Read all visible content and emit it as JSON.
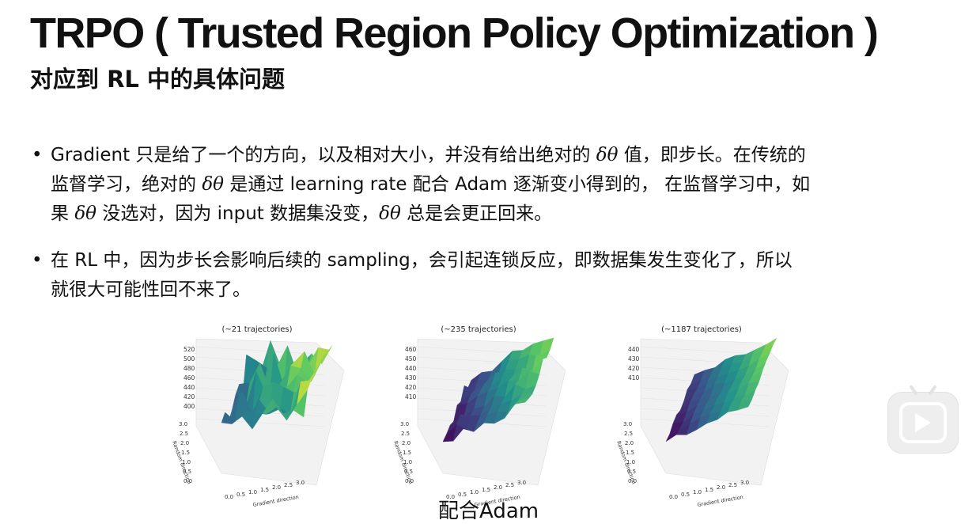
{
  "slide": {
    "title": "TRPO ( Trusted Region Policy Optimization )",
    "subtitle": "对应到 RL 中的具体问题",
    "bullet_symbol": "•",
    "delta_theta": "δθ",
    "bullet1": {
      "l1a": "Gradient 只是给了一个的方向，以及相对大小，并没有给出绝对的 ",
      "l1b": " 值，即步长。在传统的",
      "l2a": "监督学习，绝对的 ",
      "l2b": " 是通过 learning rate 配合 Adam 逐渐变小得到的，  在监督学习中，如",
      "l3a": "果 ",
      "l3b": " 没选对，因为 input 数据集没变，",
      "l3c": " 总是会更正回来。"
    },
    "bullet2": {
      "l1": "在 RL 中，因为步长会影响后续的 sampling，会引起连锁反应，即数据集发生变化了，所以",
      "l2": "就很大可能性回不来了。"
    },
    "caption": "配合Adam"
  },
  "figures": [
    {
      "title": "(~21 trajectories)",
      "z_ticks": [
        "520",
        "500",
        "480",
        "460",
        "440",
        "420",
        "400"
      ],
      "rand_ticks": [
        "3.0",
        "2.5",
        "2.0",
        "1.5",
        "1.0",
        "0.5",
        "0.0"
      ],
      "grad_ticks": [
        "0.0",
        "0.5",
        "1.0",
        "1.5",
        "2.0",
        "2.5",
        "3.0"
      ],
      "ylabel": "Random direction",
      "xlabel": "Gradient direction",
      "surface": "noisy"
    },
    {
      "title": "(~235 trajectories)",
      "z_ticks": [
        "460",
        "450",
        "440",
        "430",
        "420",
        "410"
      ],
      "rand_ticks": [
        "3.0",
        "2.5",
        "2.0",
        "1.5",
        "1.0",
        "0.5",
        "0.0"
      ],
      "grad_ticks": [
        "0.0",
        "0.5",
        "1.0",
        "1.5",
        "2.0",
        "2.5",
        "3.0"
      ],
      "ylabel": "Random direction",
      "xlabel": "Gradient direction",
      "surface": "slope"
    },
    {
      "title": "(~1187 trajectories)",
      "z_ticks": [
        "440",
        "430",
        "420",
        "410"
      ],
      "rand_ticks": [
        "3.0",
        "2.5",
        "2.0",
        "1.5",
        "1.0",
        "0.5",
        "0.0"
      ],
      "grad_ticks": [
        "0.0",
        "0.5",
        "1.0",
        "1.5",
        "2.0",
        "2.5",
        "3.0"
      ],
      "ylabel": "Random direction",
      "xlabel": "Gradient direction",
      "surface": "smooth"
    }
  ],
  "overlay": {
    "icon": "play-icon"
  }
}
